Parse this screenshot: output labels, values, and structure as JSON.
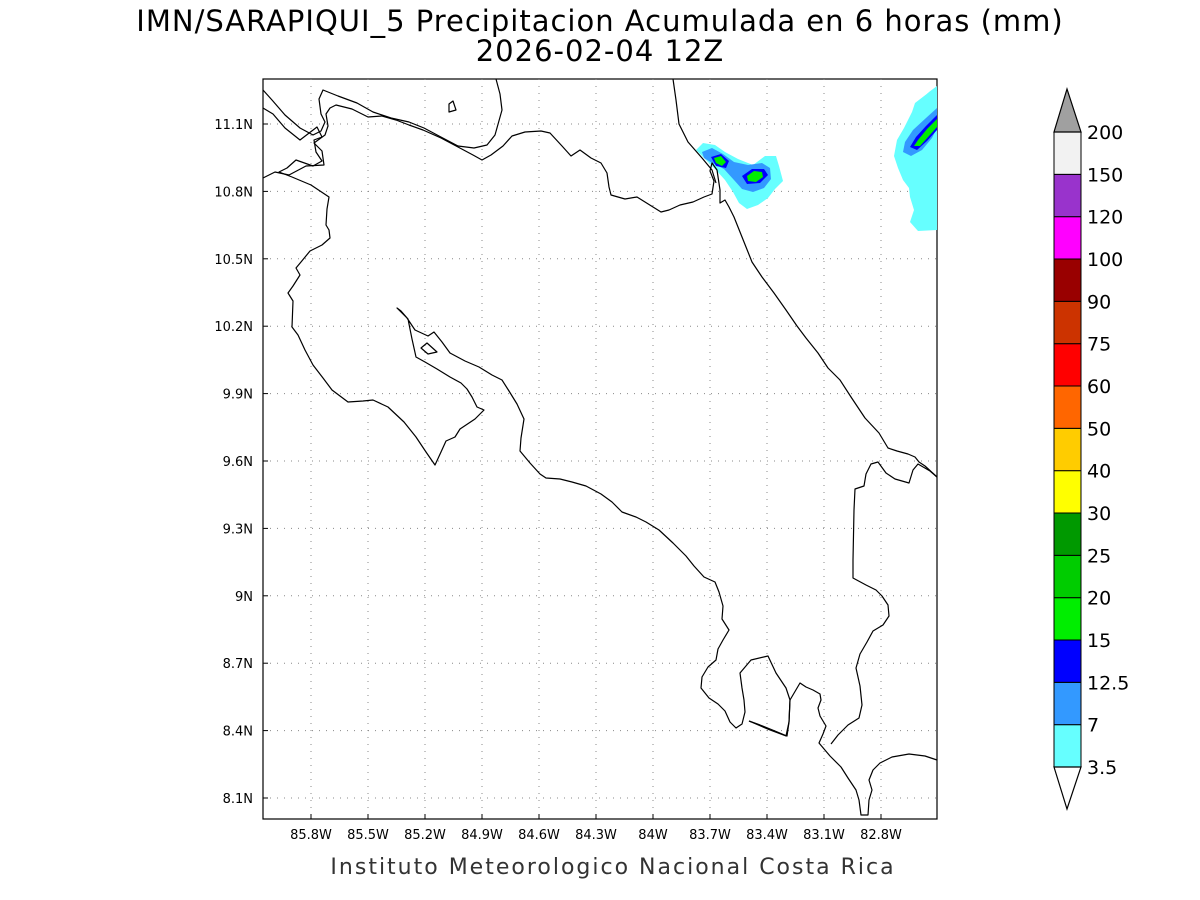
{
  "title": {
    "line1": "IMN/SARAPIQUI_5 Precipitacion Acumulada en 6 horas (mm)",
    "line2": "2026-02-04 12Z"
  },
  "footer": "Instituto Meteorologico Nacional Costa Rica",
  "map": {
    "lon_range": [
      -86.0,
      -82.5
    ],
    "lat_range": [
      8.0,
      11.3
    ],
    "lon_ticks": [
      {
        "value": -85.8,
        "label": "85.8W"
      },
      {
        "value": -85.5,
        "label": "85.5W"
      },
      {
        "value": -85.2,
        "label": "85.2W"
      },
      {
        "value": -84.9,
        "label": "84.9W"
      },
      {
        "value": -84.6,
        "label": "84.6W"
      },
      {
        "value": -84.3,
        "label": "84.3W"
      },
      {
        "value": -84.0,
        "label": "84W"
      },
      {
        "value": -83.7,
        "label": "83.7W"
      },
      {
        "value": -83.4,
        "label": "83.4W"
      },
      {
        "value": -83.1,
        "label": "83.1W"
      },
      {
        "value": -82.8,
        "label": "82.8W"
      }
    ],
    "lat_ticks": [
      {
        "value": 11.1,
        "label": "11.1N"
      },
      {
        "value": 10.8,
        "label": "10.8N"
      },
      {
        "value": 10.5,
        "label": "10.5N"
      },
      {
        "value": 10.2,
        "label": "10.2N"
      },
      {
        "value": 9.9,
        "label": "9.9N"
      },
      {
        "value": 9.6,
        "label": "9.6N"
      },
      {
        "value": 9.3,
        "label": "9.3N"
      },
      {
        "value": 9.0,
        "label": "9N"
      },
      {
        "value": 8.7,
        "label": "8.7N"
      },
      {
        "value": 8.4,
        "label": "8.4N"
      },
      {
        "value": 8.1,
        "label": "8.1N"
      }
    ],
    "grid": "dotted"
  },
  "colorbar": {
    "labels": [
      "3.5",
      "7",
      "12.5",
      "15",
      "20",
      "25",
      "30",
      "40",
      "50",
      "60",
      "75",
      "90",
      "100",
      "120",
      "150",
      "200"
    ],
    "colors": [
      "#66ffff",
      "#3399ff",
      "#0000ff",
      "#00ee00",
      "#00cc00",
      "#009900",
      "#ffff00",
      "#ffcc00",
      "#ff6600",
      "#ff0000",
      "#cc3300",
      "#990000",
      "#ff00ff",
      "#9933cc",
      "#f2f2f2"
    ],
    "over_color": "#a0a0a0",
    "under_color": "#ffffff"
  }
}
